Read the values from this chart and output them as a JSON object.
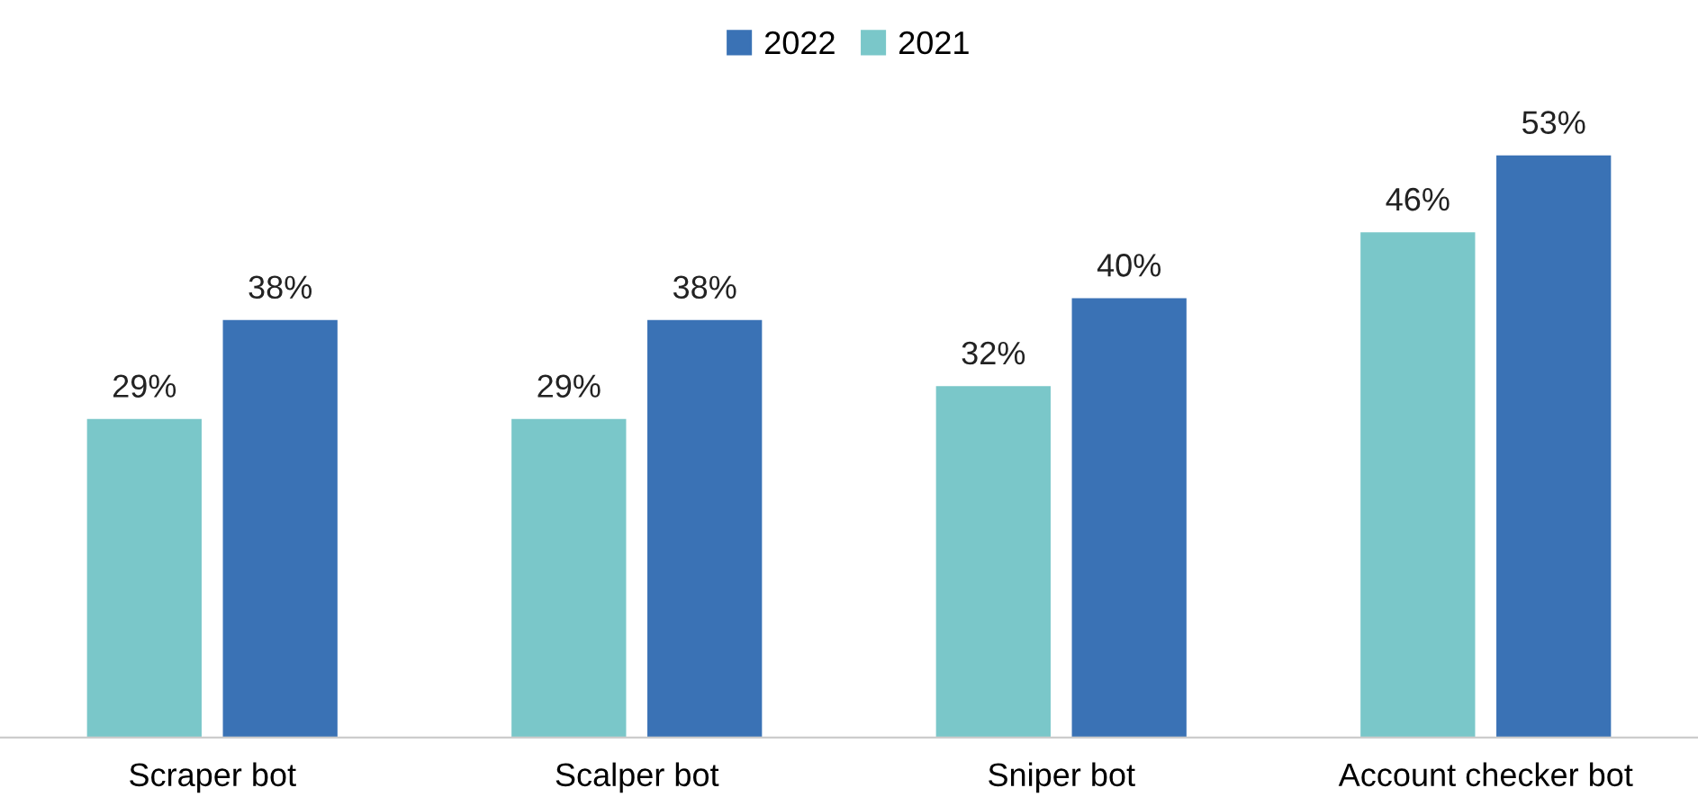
{
  "chart_data": {
    "type": "bar",
    "categories": [
      "Scraper bot",
      "Scalper bot",
      "Sniper bot",
      "Account checker bot"
    ],
    "series": [
      {
        "name": "2021",
        "color": "#7ac7c9",
        "values": [
          29,
          29,
          32,
          46
        ],
        "value_labels": [
          "29%",
          "29%",
          "32%",
          "46%"
        ]
      },
      {
        "name": "2022",
        "color": "#3a72b5",
        "values": [
          38,
          38,
          40,
          53
        ],
        "value_labels": [
          "38%",
          "38%",
          "40%",
          "53%"
        ]
      }
    ],
    "legend": "top",
    "grid": false
  }
}
